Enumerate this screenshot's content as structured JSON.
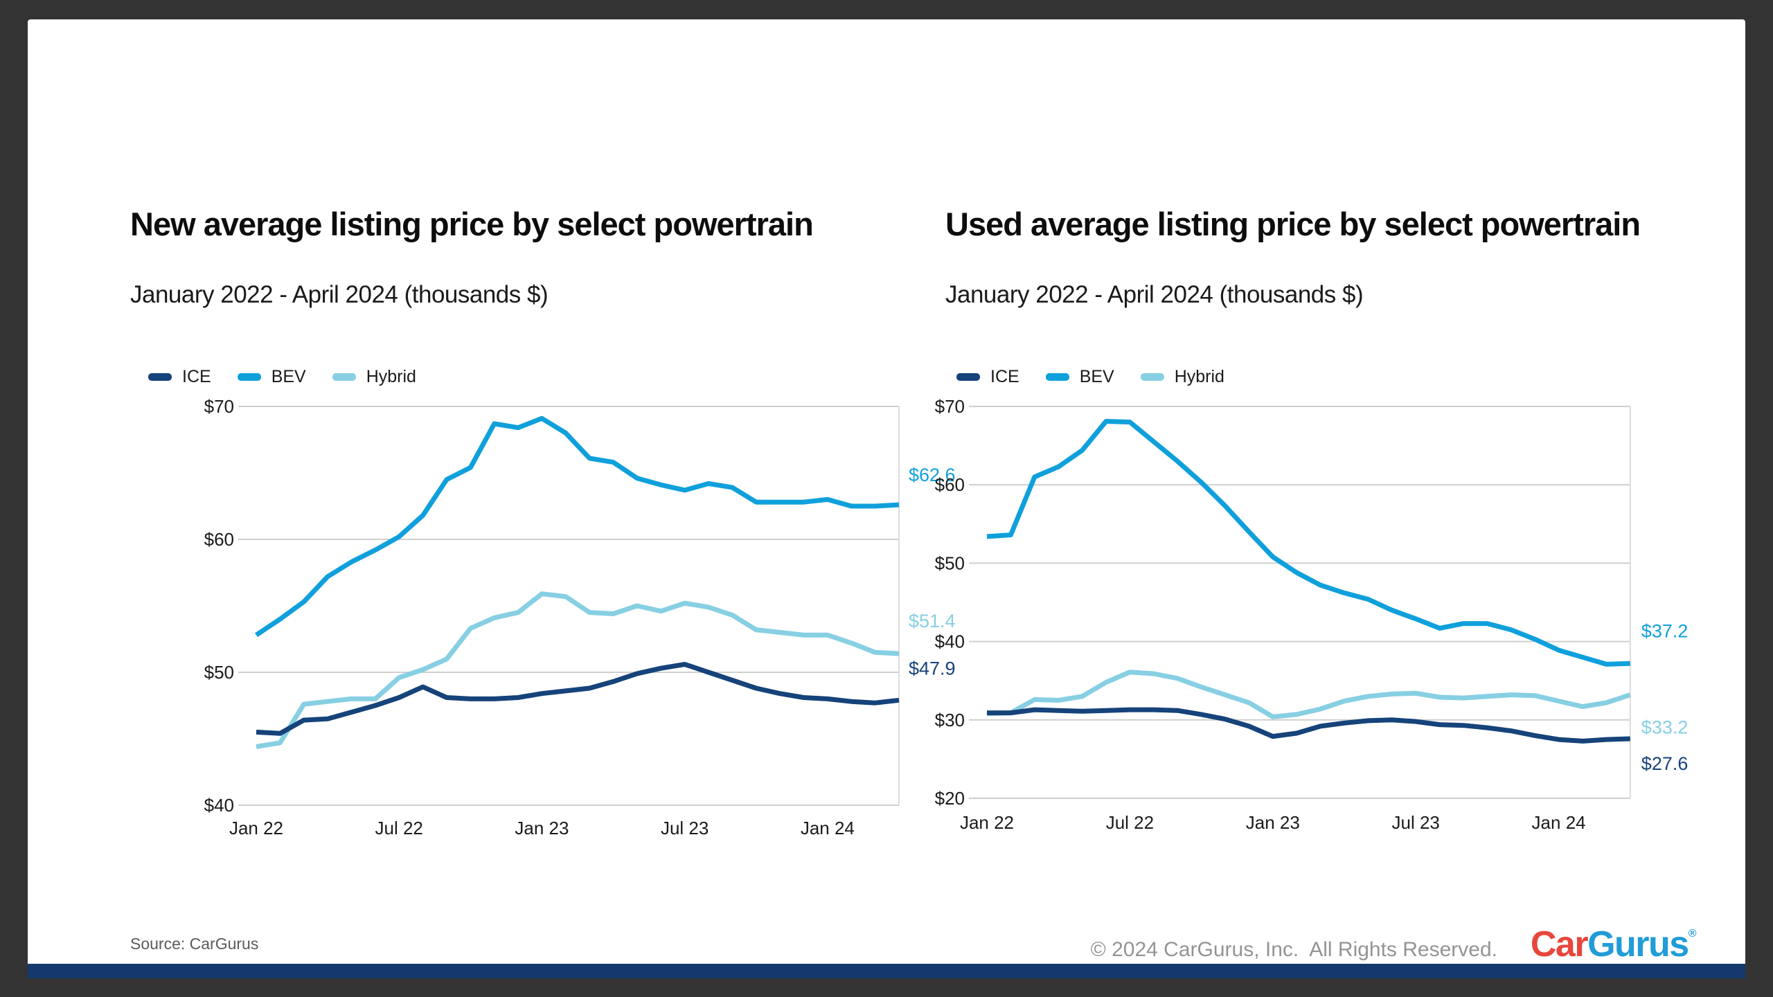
{
  "slide": {
    "source": "Source: CarGurus",
    "copyright": "© 2024 CarGurus, Inc.  All Rights Reserved.",
    "logo": {
      "car": "Car",
      "gurus": "Gurus",
      "registered": "®"
    },
    "colors": {
      "ice": "#15437A",
      "bev": "#0FA0DC",
      "hybrid": "#87CFE3",
      "gridline": "#CFCFCF",
      "footer_bar": "#143A6D",
      "background": "#333333",
      "card": "#FFFFFF"
    }
  },
  "chart_data": [
    {
      "type": "line",
      "title": "New average listing price by select powertrain",
      "subtitle": "January 2022 - April 2024 (thousands $)",
      "grid": "horizontal",
      "legend_position": "top-left",
      "ylim": [
        40,
        70
      ],
      "x": [
        "Jan 22",
        "Feb 22",
        "Mar 22",
        "Apr 22",
        "May 22",
        "Jun 22",
        "Jul 22",
        "Aug 22",
        "Sep 22",
        "Oct 22",
        "Nov 22",
        "Dec 22",
        "Jan 23",
        "Feb 23",
        "Mar 23",
        "Apr 23",
        "May 23",
        "Jun 23",
        "Jul 23",
        "Aug 23",
        "Sep 23",
        "Oct 23",
        "Nov 23",
        "Dec 23",
        "Jan 24",
        "Feb 24",
        "Mar 24",
        "Apr 24"
      ],
      "xticks": [
        {
          "label": "Jan 22",
          "index": 0
        },
        {
          "label": "Jul 22",
          "index": 6
        },
        {
          "label": "Jan 23",
          "index": 12
        },
        {
          "label": "Jul 23",
          "index": 18
        },
        {
          "label": "Jan 24",
          "index": 24
        }
      ],
      "yticks": [
        {
          "label": "$70",
          "value": 70
        },
        {
          "label": "$60",
          "value": 60
        },
        {
          "label": "$50",
          "value": 50
        },
        {
          "label": "$40",
          "value": 40
        }
      ],
      "series": [
        {
          "name": "ICE",
          "color": "#15437A",
          "end_label": "$47.9",
          "values": [
            45.5,
            45.4,
            46.4,
            46.5,
            47.0,
            47.5,
            48.1,
            48.9,
            48.1,
            48.0,
            48.0,
            48.1,
            48.4,
            48.6,
            48.8,
            49.3,
            49.9,
            50.3,
            50.6,
            50.0,
            49.4,
            48.8,
            48.4,
            48.1,
            48.0,
            47.8,
            47.7,
            47.9
          ]
        },
        {
          "name": "BEV",
          "color": "#0FA0DC",
          "end_label": "$62.6",
          "values": [
            52.8,
            54.0,
            55.3,
            57.2,
            58.3,
            59.2,
            60.2,
            61.8,
            64.5,
            65.4,
            68.7,
            68.4,
            69.1,
            68.0,
            66.1,
            65.8,
            64.6,
            64.1,
            63.7,
            64.2,
            63.9,
            62.8,
            62.8,
            62.8,
            63.0,
            62.5,
            62.5,
            62.6
          ]
        },
        {
          "name": "Hybrid",
          "color": "#87CFE3",
          "end_label": "$51.4",
          "values": [
            44.4,
            44.7,
            47.6,
            47.8,
            48.0,
            48.0,
            49.6,
            50.2,
            51.0,
            53.3,
            54.1,
            54.5,
            55.9,
            55.7,
            54.5,
            54.4,
            55.0,
            54.6,
            55.2,
            54.9,
            54.3,
            53.2,
            53.0,
            52.8,
            52.8,
            52.2,
            51.5,
            51.4
          ]
        }
      ]
    },
    {
      "type": "line",
      "title": "Used average listing price by select powertrain",
      "subtitle": "January 2022 - April 2024 (thousands $)",
      "grid": "horizontal",
      "legend_position": "top-left",
      "ylim": [
        20,
        70
      ],
      "x": [
        "Jan 22",
        "Feb 22",
        "Mar 22",
        "Apr 22",
        "May 22",
        "Jun 22",
        "Jul 22",
        "Aug 22",
        "Sep 22",
        "Oct 22",
        "Nov 22",
        "Dec 22",
        "Jan 23",
        "Feb 23",
        "Mar 23",
        "Apr 23",
        "May 23",
        "Jun 23",
        "Jul 23",
        "Aug 23",
        "Sep 23",
        "Oct 23",
        "Nov 23",
        "Dec 23",
        "Jan 24",
        "Feb 24",
        "Mar 24",
        "Apr 24"
      ],
      "xticks": [
        {
          "label": "Jan 22",
          "index": 0
        },
        {
          "label": "Jul 22",
          "index": 6
        },
        {
          "label": "Jan 23",
          "index": 12
        },
        {
          "label": "Jul 23",
          "index": 18
        },
        {
          "label": "Jan 24",
          "index": 24
        }
      ],
      "yticks": [
        {
          "label": "$70",
          "value": 70
        },
        {
          "label": "$60",
          "value": 60
        },
        {
          "label": "$50",
          "value": 50
        },
        {
          "label": "$40",
          "value": 40
        },
        {
          "label": "$30",
          "value": 30
        },
        {
          "label": "$20",
          "value": 20
        }
      ],
      "series": [
        {
          "name": "ICE",
          "color": "#15437A",
          "end_label": "$27.6",
          "values": [
            30.9,
            30.9,
            31.3,
            31.2,
            31.1,
            31.2,
            31.3,
            31.3,
            31.2,
            30.7,
            30.1,
            29.2,
            27.9,
            28.3,
            29.2,
            29.6,
            29.9,
            30.0,
            29.8,
            29.4,
            29.3,
            29.0,
            28.6,
            28.0,
            27.5,
            27.3,
            27.5,
            27.6
          ]
        },
        {
          "name": "BEV",
          "color": "#0FA0DC",
          "end_label": "$37.2",
          "values": [
            53.4,
            53.6,
            61.0,
            62.3,
            64.4,
            68.1,
            68.0,
            65.5,
            63.0,
            60.3,
            57.3,
            54.0,
            50.8,
            48.8,
            47.2,
            46.2,
            45.4,
            44.0,
            42.9,
            41.7,
            42.3,
            42.3,
            41.5,
            40.3,
            38.9,
            38.0,
            37.1,
            37.2
          ]
        },
        {
          "name": "Hybrid",
          "color": "#87CFE3",
          "end_label": "$33.2",
          "values": [
            30.8,
            30.9,
            32.6,
            32.5,
            33.0,
            34.8,
            36.1,
            35.9,
            35.3,
            34.2,
            33.2,
            32.2,
            30.4,
            30.7,
            31.4,
            32.4,
            33.0,
            33.3,
            33.4,
            32.9,
            32.8,
            33.0,
            33.2,
            33.1,
            32.4,
            31.7,
            32.2,
            33.2
          ]
        }
      ]
    }
  ]
}
